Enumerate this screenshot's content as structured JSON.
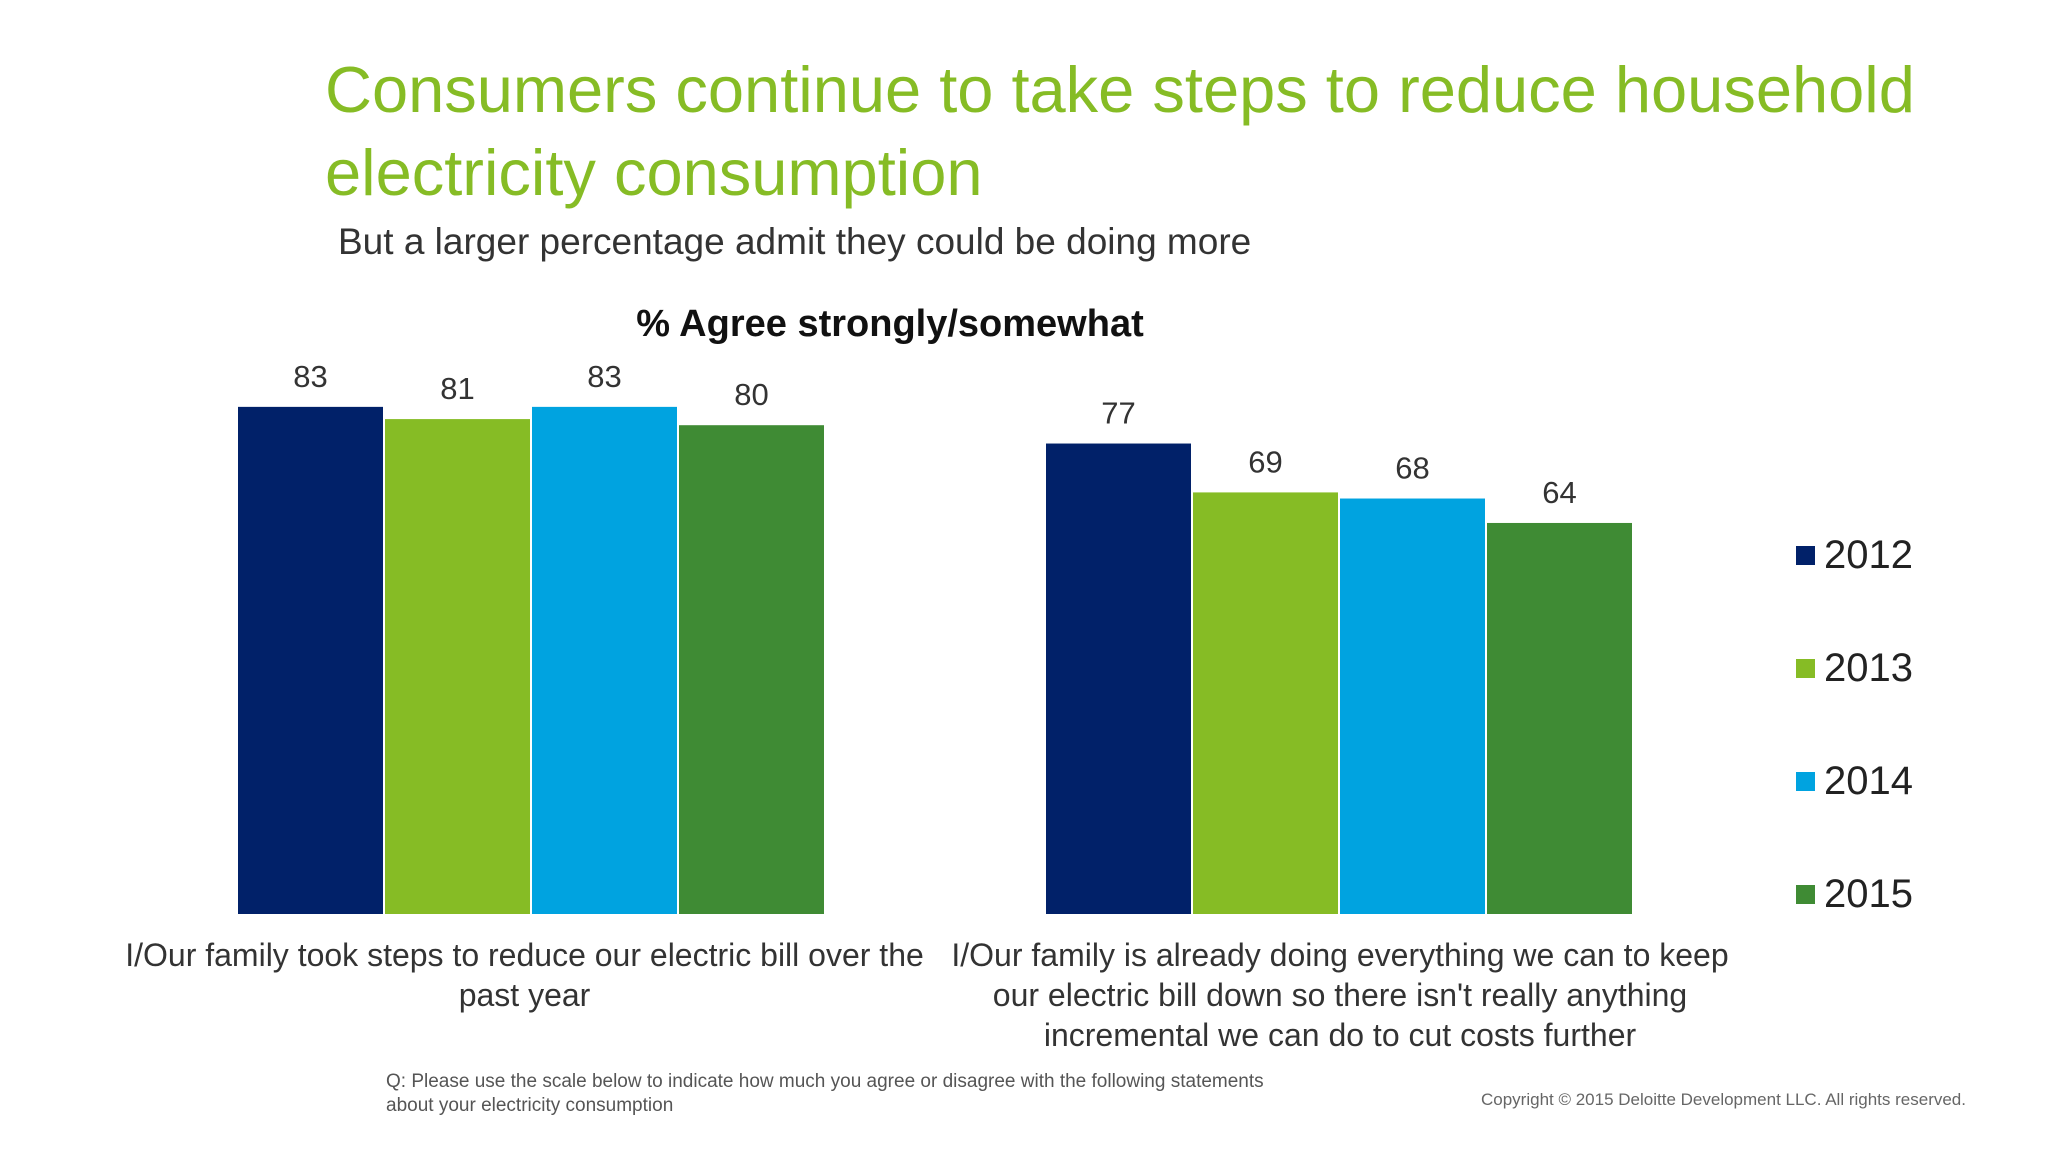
{
  "title": "Consumers continue to take steps to reduce household electricity consumption",
  "subtitle": "But a larger percentage admit they could be doing more",
  "question": "Q: Please  use the scale below to indicate how much you agree or disagree with the following statements about your electricity consumption",
  "copyright": "Copyright © 2015 Deloitte Development LLC. All rights reserved.",
  "chart_data": {
    "type": "bar",
    "title": "%  Agree strongly/somewhat",
    "categories": [
      "I/Our family took steps to reduce our electric bill over the past year",
      "I/Our family is already doing everything we can to keep our electric bill down so there isn't really anything incremental we can do to cut costs further"
    ],
    "series": [
      {
        "name": "2012",
        "values": [
          83,
          77
        ],
        "color": "#012169"
      },
      {
        "name": "2013",
        "values": [
          81,
          69
        ],
        "color": "#86bc25"
      },
      {
        "name": "2014",
        "values": [
          83,
          68
        ],
        "color": "#00a3e0"
      },
      {
        "name": "2015",
        "values": [
          80,
          64
        ],
        "color": "#3f8b34"
      }
    ],
    "ylim": [
      0,
      100
    ],
    "grid": false,
    "legend_position": "right",
    "data_labels": true
  }
}
